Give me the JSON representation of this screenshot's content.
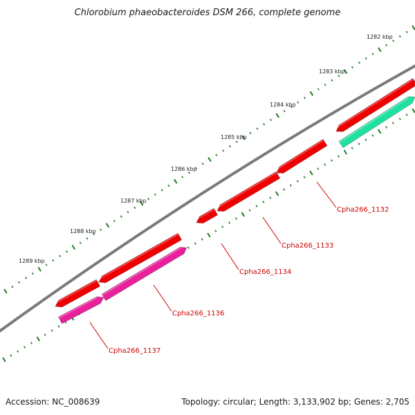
{
  "title": "Chlorobium phaeobacteroides DSM 266, complete genome",
  "footer": {
    "accession": "Accession: NC_008639",
    "info": "Topology: circular; Length: 3,133,902 bp; Genes: 2,705"
  },
  "colors": {
    "backbone": "#7a7a7a",
    "tick": "#1f7a1f",
    "gene_red": "#ee0000",
    "gene_magenta": "#e8209a",
    "gene_teal": "#20e0a0",
    "label": "#cc0000"
  },
  "kbp_labels": [
    "1282 kbp",
    "1283 kbp",
    "1284 kbp",
    "1285 kbp",
    "1286 kbp",
    "1287 kbp",
    "1288 kbp",
    "1289 kbp"
  ],
  "gene_labels": [
    "Cpha266_1132",
    "Cpha266_1133",
    "Cpha266_1134",
    "Cpha266_1136",
    "Cpha266_1137"
  ]
}
